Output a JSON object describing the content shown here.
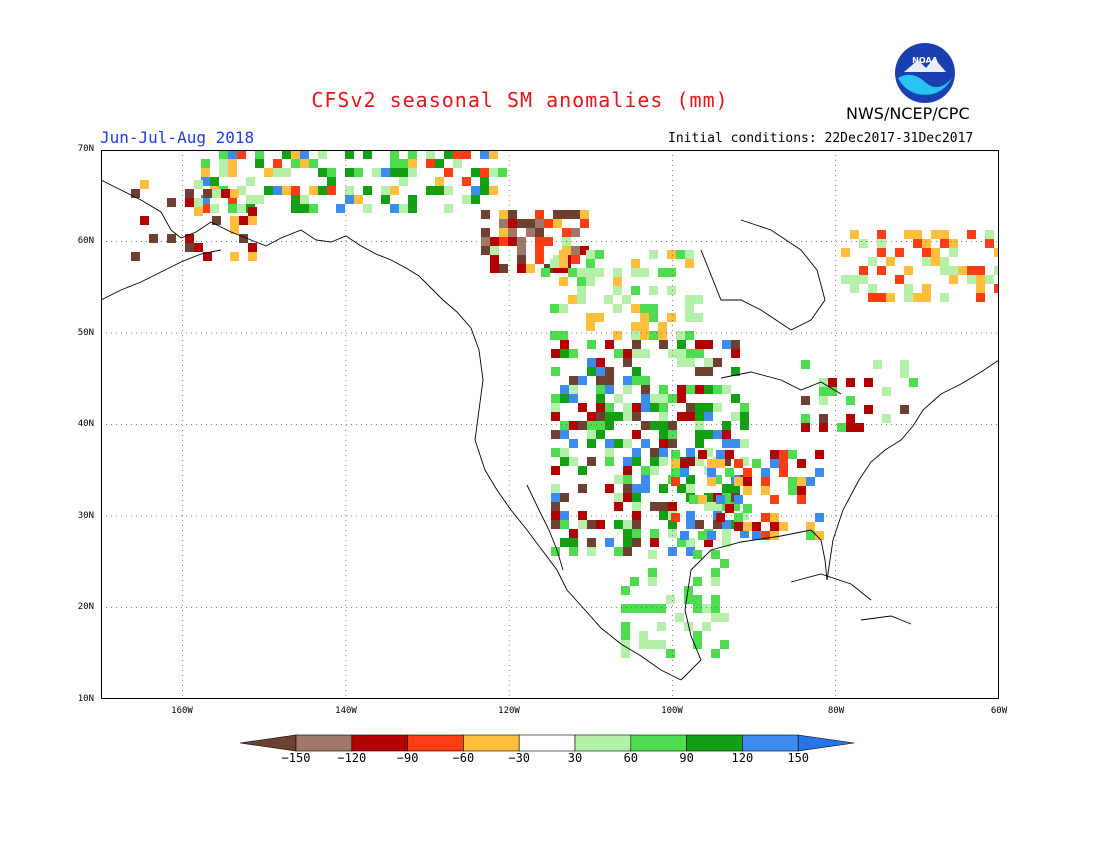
{
  "title": "CFSv2 seasonal SM anomalies (mm)",
  "agency": "NWS/NCEP/CPC",
  "logo_text": "NOAA",
  "season": "Jun-Jul-Aug 2018",
  "initial_conditions": "Initial conditions: 22Dec2017-31Dec2017",
  "lat_labels": [
    "70N",
    "60N",
    "50N",
    "40N",
    "30N",
    "20N",
    "10N"
  ],
  "lon_labels": [
    "160W",
    "140W",
    "120W",
    "100W",
    "80W",
    "60W"
  ],
  "colorbar": {
    "labels": [
      "-150",
      "-120",
      "-90",
      "-60",
      "-30",
      "30",
      "60",
      "90",
      "120",
      "150"
    ],
    "colors": [
      "#6e4032",
      "#a0786a",
      "#b30000",
      "#ff3d14",
      "#ffbe3c",
      "#ffffff",
      "#b4f0aa",
      "#50dc50",
      "#14a014",
      "#3c8cf0",
      "#2873e6"
    ]
  }
}
